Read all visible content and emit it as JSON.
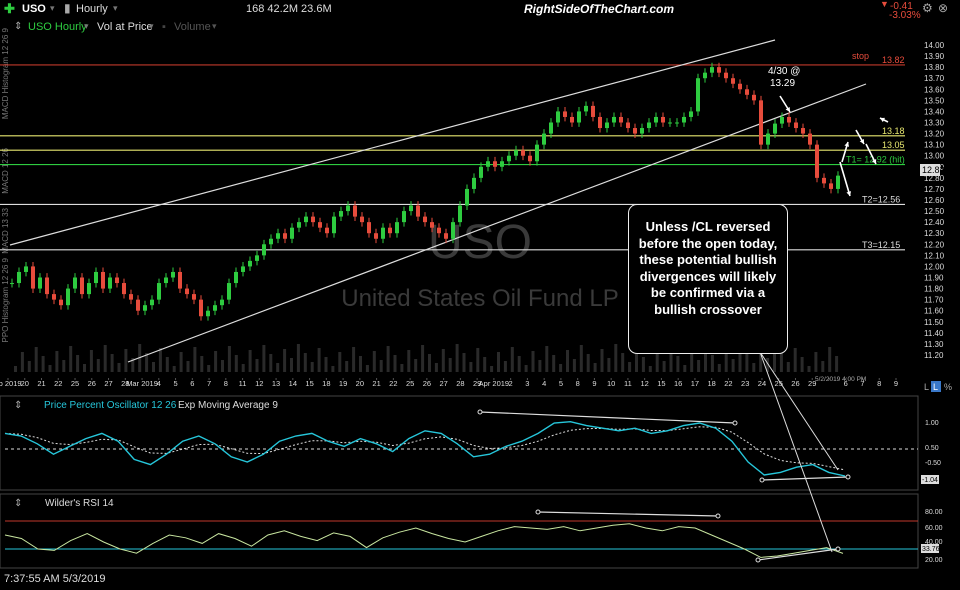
{
  "toolbar": {
    "symbol": "USO",
    "interval": "Hourly",
    "stats": "168  42.2M  23.6M",
    "site": "RightSideOfTheChart.com",
    "change": "-0.41",
    "change_pct": "-3.03%",
    "overlay1": "USO Hourly",
    "overlay2": "Vol at Price",
    "overlay3": "Volume"
  },
  "sidebar": {
    "labels": [
      "MACD Histogram 12 26 9",
      "MACD 12 26",
      "MACD 13 33",
      "PPO Histogram 12 26 9"
    ]
  },
  "price_chart": {
    "watermark_symbol": "USO",
    "watermark_name": "United States Oil Fund LP",
    "y_ticks": [
      "14.00",
      "13.90",
      "13.80",
      "13.70",
      "13.60",
      "13.50",
      "13.40",
      "13.30",
      "13.20",
      "13.10",
      "13.00",
      "12.90",
      "12.80",
      "12.70",
      "12.60",
      "12.50",
      "12.40",
      "12.30",
      "12.20",
      "12.10",
      "12.00",
      "11.90",
      "11.80",
      "11.70",
      "11.60",
      "11.50",
      "11.40",
      "11.30",
      "11.20"
    ],
    "y_tick_values": [
      14.0,
      13.9,
      13.8,
      13.7,
      13.6,
      13.5,
      13.4,
      13.3,
      13.2,
      13.1,
      13.0,
      12.9,
      12.8,
      12.7,
      12.6,
      12.5,
      12.4,
      12.3,
      12.2,
      12.1,
      12.0,
      11.9,
      11.8,
      11.7,
      11.6,
      11.5,
      11.4,
      11.3,
      11.2
    ],
    "x_ticks": [
      "eb 2019",
      "20",
      "21",
      "22",
      "25",
      "26",
      "27",
      "28",
      "Mar 2019",
      "4",
      "5",
      "6",
      "7",
      "8",
      "11",
      "12",
      "13",
      "14",
      "15",
      "18",
      "19",
      "20",
      "21",
      "22",
      "25",
      "26",
      "27",
      "28",
      "29",
      "Apr 2019",
      "2",
      "3",
      "4",
      "5",
      "8",
      "9",
      "10",
      "11",
      "12",
      "15",
      "16",
      "17",
      "18",
      "22",
      "23",
      "24",
      "25",
      "26",
      "29",
      "",
      "6",
      "7",
      "8",
      "9"
    ],
    "date_label": "5/2/2019 4:00 PM",
    "last_price": "12.82",
    "lines": [
      {
        "label": "stop",
        "value": "13.82",
        "color": "#c0392b"
      },
      {
        "label": "",
        "value": "13.18",
        "color": "#e8e870"
      },
      {
        "label": "",
        "value": "13.05",
        "color": "#e8e870"
      },
      {
        "label": "T1= 12.92 (hit)",
        "value": "12.92",
        "color": "#2ecc40"
      },
      {
        "label": "T2=12.56",
        "value": "12.56",
        "color": "#dddddd"
      },
      {
        "label": "T3=12.15",
        "value": "12.15",
        "color": "#dddddd"
      }
    ],
    "annotation_date": "4/30 @",
    "annotation_price": "13.29",
    "callout": "Unless /CL reversed before the open today, these potential bullish divergences will likely be confirmed via a bullish crossover"
  },
  "ppo_panel": {
    "title": "Price Percent Oscillator 12 26",
    "signal": "Exp Moving Average 9",
    "y_ticks": [
      "1.00",
      "0.50",
      "-0.50"
    ],
    "last": "-1.04"
  },
  "rsi_panel": {
    "title": "Wilder's RSI 14",
    "y_ticks": [
      "80.00",
      "60.00",
      "40.00",
      "20.00"
    ],
    "last": "33.76"
  },
  "footer": {
    "timestamp": "7:37:55 AM 5/3/2019"
  },
  "chart_data": {
    "type": "candlestick",
    "symbol": "USO",
    "interval": "Hourly",
    "ylim": [
      11.2,
      14.05
    ],
    "close_series": [
      11.85,
      11.95,
      12.0,
      11.8,
      11.9,
      11.75,
      11.7,
      11.65,
      11.8,
      11.9,
      11.75,
      11.85,
      11.95,
      11.8,
      11.9,
      11.85,
      11.75,
      11.7,
      11.6,
      11.65,
      11.7,
      11.85,
      11.9,
      11.95,
      11.8,
      11.75,
      11.7,
      11.55,
      11.6,
      11.65,
      11.7,
      11.85,
      11.95,
      12.0,
      12.05,
      12.1,
      12.2,
      12.25,
      12.3,
      12.25,
      12.35,
      12.4,
      12.45,
      12.4,
      12.35,
      12.3,
      12.45,
      12.5,
      12.55,
      12.45,
      12.4,
      12.3,
      12.25,
      12.35,
      12.3,
      12.4,
      12.5,
      12.55,
      12.45,
      12.4,
      12.35,
      12.3,
      12.25,
      12.4,
      12.55,
      12.7,
      12.8,
      12.9,
      12.95,
      12.9,
      12.95,
      13.0,
      13.05,
      13.0,
      12.95,
      13.1,
      13.2,
      13.3,
      13.4,
      13.35,
      13.3,
      13.4,
      13.45,
      13.35,
      13.25,
      13.3,
      13.35,
      13.3,
      13.25,
      13.2,
      13.25,
      13.3,
      13.35,
      13.3,
      13.3,
      13.3,
      13.35,
      13.4,
      13.7,
      13.75,
      13.8,
      13.75,
      13.7,
      13.65,
      13.6,
      13.55,
      13.5,
      13.1,
      13.2,
      13.29,
      13.35,
      13.3,
      13.25,
      13.2,
      13.1,
      12.8,
      12.75,
      12.7,
      12.82
    ],
    "horizontal_levels": [
      13.82,
      13.18,
      13.05,
      12.92,
      12.56,
      12.15
    ],
    "ppo_series": [
      0.6,
      0.5,
      0.2,
      -0.2,
      0.1,
      0.4,
      0.6,
      0.3,
      -0.4,
      -0.6,
      -0.2,
      0.3,
      0.5,
      0.2,
      -0.3,
      -0.5,
      -0.2,
      0.3,
      0.5,
      0.6,
      0.3,
      0.1,
      0.4,
      0.2,
      -0.1,
      0.4,
      0.7,
      0.6,
      0.2,
      -0.3,
      -0.2,
      0.1,
      0.3,
      0.6,
      1.0,
      1.05,
      0.9,
      0.8,
      0.7,
      0.8,
      0.6,
      0.7,
      0.9,
      1.0,
      0.8,
      0.3,
      -0.5,
      -1.0,
      -0.9,
      -0.7,
      -0.6,
      -0.9,
      -1.04
    ],
    "rsi_series": [
      60,
      55,
      40,
      38,
      52,
      62,
      50,
      40,
      34,
      48,
      60,
      56,
      48,
      62,
      55,
      44,
      60,
      66,
      58,
      52,
      63,
      58,
      42,
      56,
      64,
      70,
      62,
      55,
      50,
      58,
      66,
      72,
      70,
      68,
      72,
      66,
      70,
      74,
      76,
      70,
      66,
      72,
      70,
      60,
      50,
      40,
      28,
      30,
      34,
      38,
      42,
      33.76
    ],
    "rsi_bands": [
      80,
      40
    ]
  }
}
